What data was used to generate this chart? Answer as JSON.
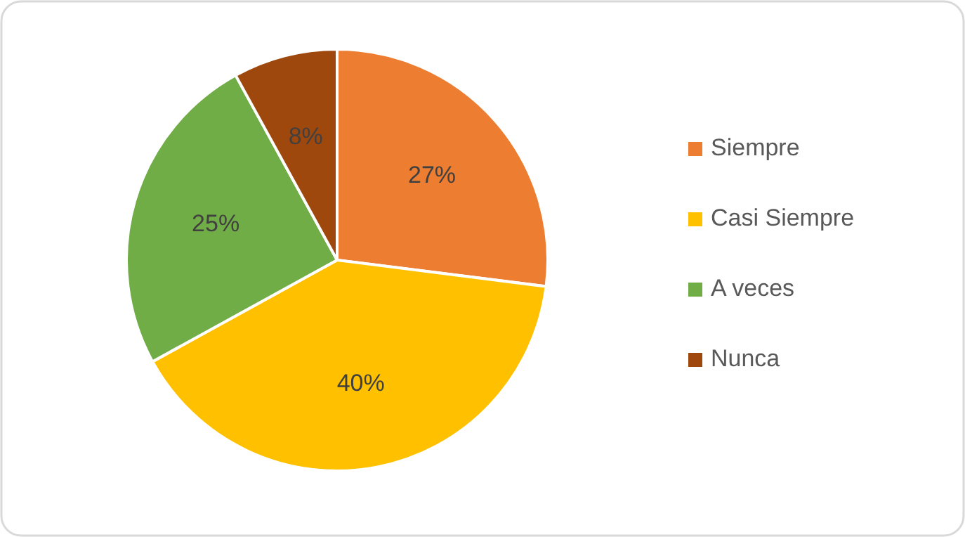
{
  "chart_data": {
    "type": "pie",
    "categories": [
      "Siempre",
      "Casi Siempre",
      "A veces",
      "Nunca"
    ],
    "values": [
      27,
      40,
      25,
      8
    ],
    "colors": [
      "#ed7d31",
      "#ffc000",
      "#70ad47",
      "#9e480e"
    ],
    "value_labels": [
      "27%",
      "40%",
      "25%",
      "8%"
    ],
    "legend": "right"
  }
}
